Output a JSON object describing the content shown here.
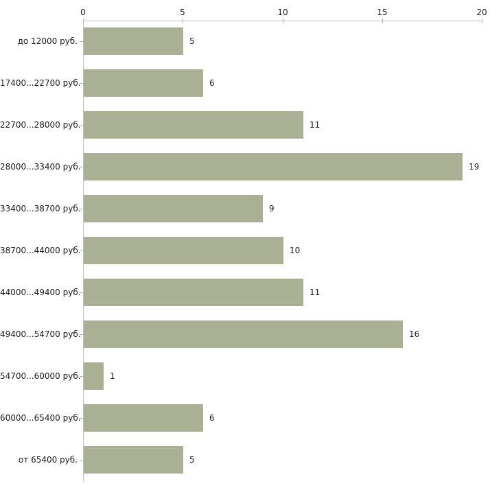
{
  "chart_data": {
    "type": "bar",
    "orientation": "horizontal",
    "title": "",
    "xlabel": "",
    "ylabel": "",
    "categories": [
      "до 12000 руб.",
      "17400...22700 руб.",
      "22700...28000 руб.",
      "28000...33400 руб.",
      "33400...38700 руб.",
      "38700...44000 руб.",
      "44000...49400 руб.",
      "49400...54700 руб.",
      "54700...60000 руб.",
      "60000...65400 руб.",
      "от 65400 руб."
    ],
    "values": [
      5,
      6,
      11,
      19,
      9,
      10,
      11,
      16,
      1,
      6,
      5
    ],
    "x_ticks": [
      "0",
      "5",
      "10",
      "15",
      "20"
    ],
    "x_tick_values": [
      0,
      5,
      10,
      15,
      20
    ],
    "xlim": [
      0,
      20
    ],
    "axis_position": "top",
    "grid": false,
    "legend": false,
    "value_labels": true,
    "colors": {
      "bar": "#aab094",
      "axis_line": "#c0c0c0",
      "tick_mark": "#b4b89b",
      "text": "#1a1a1a",
      "background": "#ffffff"
    }
  }
}
